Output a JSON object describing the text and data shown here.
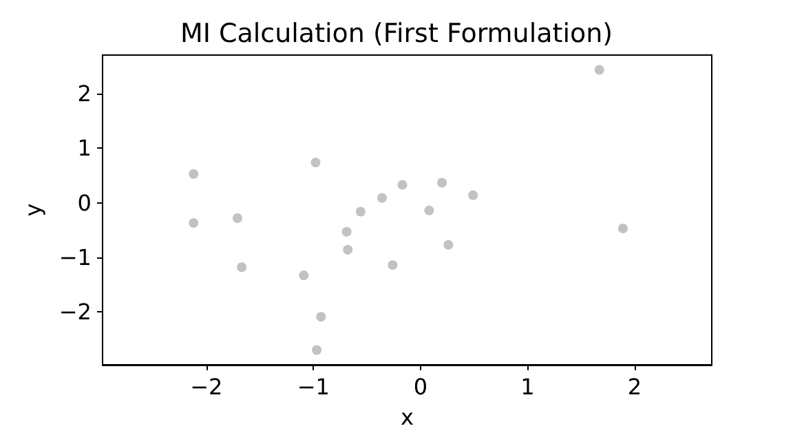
{
  "chart_data": {
    "type": "scatter",
    "title": "MI Calculation (First Formulation)",
    "xlabel": "x",
    "ylabel": "y",
    "x": [
      1.67,
      -2.12,
      -2.12,
      -0.98,
      -1.71,
      -1.67,
      -1.09,
      -0.93,
      -0.97,
      -0.69,
      -0.68,
      -0.56,
      -0.36,
      -0.17,
      -0.26,
      0.08,
      0.2,
      0.26,
      0.49,
      1.89
    ],
    "values": [
      2.44,
      0.53,
      -0.37,
      0.74,
      -0.28,
      -1.18,
      -1.33,
      -2.09,
      -2.7,
      -0.53,
      -0.86,
      -0.16,
      0.09,
      0.33,
      -1.14,
      -0.14,
      0.37,
      -0.77,
      0.14,
      -0.47
    ],
    "color": "#b3b3b3",
    "marker": "circle",
    "grid": false,
    "xlim": [
      -2.97,
      2.72
    ],
    "xticks": [
      -2,
      -1,
      0,
      1,
      2
    ],
    "ylim": [
      -2.97,
      2.71
    ],
    "yticks": [
      -2,
      -1,
      0,
      1,
      2
    ]
  }
}
